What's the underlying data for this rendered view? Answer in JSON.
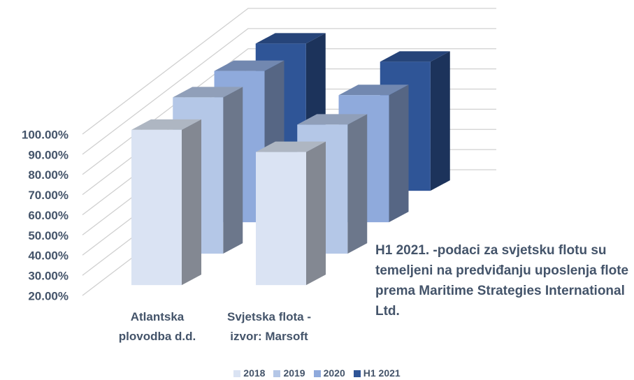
{
  "chart_data": {
    "type": "bar3d",
    "categories": [
      "Atlantska plovodba d.d.",
      "Svjetska flota - izvor: Marsoft"
    ],
    "series": [
      {
        "name": "2018",
        "color": "#dae3f3",
        "values": [
          97,
          86
        ]
      },
      {
        "name": "2019",
        "color": "#b4c7e7",
        "values": [
          97.5,
          84
        ]
      },
      {
        "name": "2020",
        "color": "#8faadc",
        "values": [
          95,
          83
        ]
      },
      {
        "name": "H1 2021",
        "color": "#2f5597",
        "values": [
          93,
          84
        ]
      }
    ],
    "ylim": [
      20,
      100
    ],
    "yticks": [
      {
        "value": 20,
        "label": "20.00%"
      },
      {
        "value": 30,
        "label": "30.00%"
      },
      {
        "value": 40,
        "label": "40.00%"
      },
      {
        "value": 50,
        "label": "50.00%"
      },
      {
        "value": 60,
        "label": "60.00%"
      },
      {
        "value": 70,
        "label": "70.00%"
      },
      {
        "value": 80,
        "label": "80.00%"
      },
      {
        "value": 90,
        "label": "90.00%"
      },
      {
        "value": 100,
        "label": "100.00%"
      }
    ],
    "grid": true,
    "annotation": "H1 2021. -podaci za svjetsku flotu su temeljeni na predviđanju uposlenja flote prema Maritime Strategies International Ltd.",
    "legend": "bottom"
  }
}
